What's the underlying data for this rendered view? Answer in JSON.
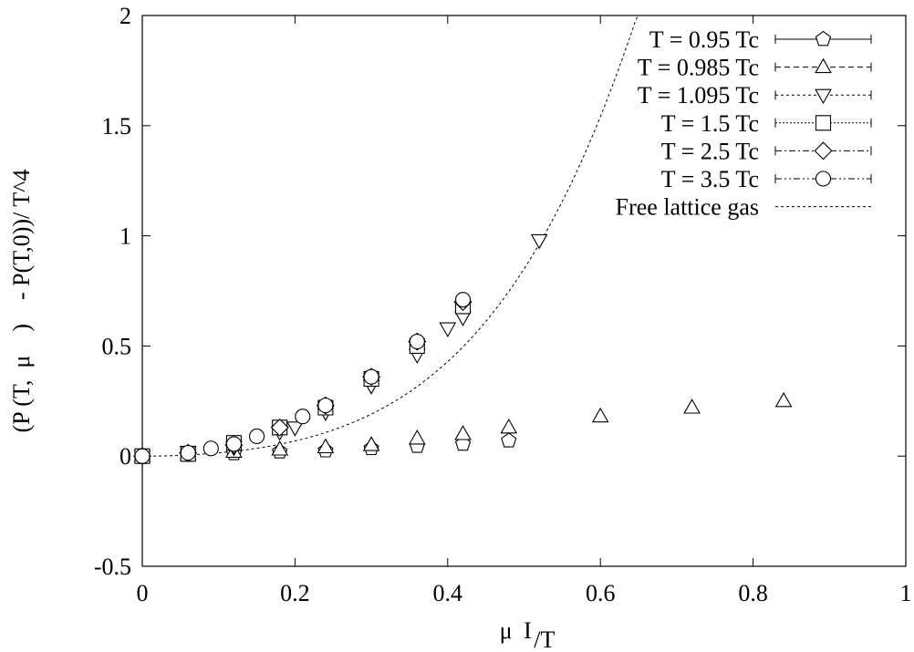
{
  "chart_data": {
    "type": "scatter",
    "xlabel": {
      "main": "μ",
      "sub": "I",
      "rest": "/T"
    },
    "ylabel": "(P (T,  μ    )    - P(T,0))/ T^4",
    "xlim": [
      0,
      1
    ],
    "ylim": [
      -0.5,
      2
    ],
    "x_ticks": [
      0,
      0.2,
      0.4,
      0.6,
      0.8,
      1
    ],
    "x_tick_labels": [
      "0",
      "0.2",
      "0.4",
      "0.6",
      "0.8",
      "1"
    ],
    "y_ticks": [
      -0.5,
      0,
      0.5,
      1,
      1.5,
      2
    ],
    "y_tick_labels": [
      "-0.5",
      "0",
      "0.5",
      "1",
      "1.5",
      "2"
    ],
    "grid": false,
    "legend_position": "top-right",
    "series": [
      {
        "name": "T = 0.95 Tc",
        "marker": "pentagon",
        "line": "solid",
        "x": [
          0,
          0.06,
          0.12,
          0.18,
          0.24,
          0.3,
          0.36,
          0.42,
          0.48
        ],
        "y": [
          0,
          0.005,
          0.012,
          0.02,
          0.025,
          0.035,
          0.045,
          0.055,
          0.07
        ]
      },
      {
        "name": "T = 0.985 Tc",
        "marker": "triangle-up",
        "line": "dashed",
        "x": [
          0,
          0.06,
          0.12,
          0.18,
          0.24,
          0.3,
          0.36,
          0.42,
          0.48,
          0.6,
          0.72,
          0.84
        ],
        "y": [
          0,
          0.01,
          0.02,
          0.03,
          0.04,
          0.05,
          0.08,
          0.1,
          0.13,
          0.18,
          0.22,
          0.25
        ]
      },
      {
        "name": "T = 1.095 Tc",
        "marker": "triangle-down",
        "line": "dotted",
        "x": [
          0,
          0.06,
          0.12,
          0.18,
          0.2,
          0.24,
          0.3,
          0.36,
          0.4,
          0.42,
          0.52
        ],
        "y": [
          0,
          0.02,
          0.04,
          0.11,
          0.13,
          0.2,
          0.32,
          0.46,
          0.58,
          0.63,
          0.98
        ]
      },
      {
        "name": "T = 1.5 Tc",
        "marker": "square",
        "line": "dotted-fine",
        "x": [
          0,
          0.06,
          0.12,
          0.18,
          0.24,
          0.3,
          0.36,
          0.42
        ],
        "y": [
          0,
          0.01,
          0.06,
          0.13,
          0.22,
          0.35,
          0.5,
          0.68
        ]
      },
      {
        "name": "T = 2.5 Tc",
        "marker": "diamond",
        "line": "dash-dot",
        "x": [
          0,
          0.06,
          0.12,
          0.18,
          0.24,
          0.3,
          0.36,
          0.42
        ],
        "y": [
          0,
          0.015,
          0.05,
          0.13,
          0.23,
          0.36,
          0.52,
          0.7
        ]
      },
      {
        "name": "T = 3.5 Tc",
        "marker": "circle",
        "line": "dash-dot-dot",
        "x": [
          0,
          0.06,
          0.09,
          0.12,
          0.15,
          0.21,
          0.24,
          0.3,
          0.36,
          0.42
        ],
        "y": [
          0,
          0.015,
          0.035,
          0.055,
          0.09,
          0.18,
          0.23,
          0.36,
          0.52,
          0.71
        ]
      }
    ],
    "curves": [
      {
        "name": "Free lattice gas",
        "line": "dotted",
        "coeff": [
          1.4,
          8.0
        ],
        "x_start": 0,
        "x_end": 0.67
      }
    ]
  }
}
